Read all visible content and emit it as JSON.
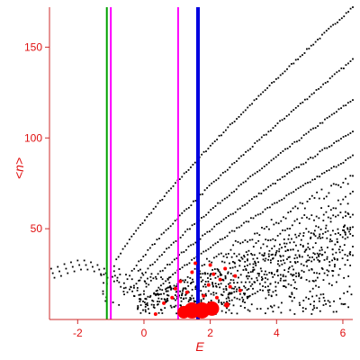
{
  "chart_data": {
    "type": "scatter",
    "xlabel": "E",
    "ylabel": "<n>",
    "xlim": [
      -2.85,
      6.3
    ],
    "ylim": [
      0,
      172
    ],
    "xticks": [
      -2,
      0,
      2,
      4,
      6
    ],
    "yticks": [
      50,
      100,
      150
    ],
    "grid": false,
    "colors": {
      "axes": "#cc2a2a",
      "labels": "#e01010",
      "dots": "#000000",
      "red_markers": "#ff0000",
      "green_line": "#00a000",
      "magenta_line": "#ff00ff",
      "blue_line": "#0000e0"
    },
    "vertical_lines": [
      {
        "x": -1.12,
        "color": "#00a000"
      },
      {
        "x": -1.0,
        "color": "#ff00ff"
      },
      {
        "x": 1.03,
        "color": "#ff00ff"
      },
      {
        "x": 1.63,
        "color": "#0000e0"
      }
    ],
    "black_curves": [
      {
        "x_start": -0.9,
        "x_end": 6.3,
        "y_start": 30,
        "y_end": 172,
        "n": 110
      },
      {
        "x_start": -0.5,
        "x_end": 6.3,
        "y_start": 22,
        "y_end": 143,
        "n": 100
      },
      {
        "x_start": -0.3,
        "x_end": 6.3,
        "y_start": 18,
        "y_end": 121,
        "n": 95
      },
      {
        "x_start": 0.0,
        "x_end": 6.3,
        "y_start": 16,
        "y_end": 104,
        "n": 90
      },
      {
        "x_start": 0.3,
        "x_end": 6.3,
        "y_start": 14,
        "y_end": 90,
        "n": 85
      },
      {
        "x_start": 0.6,
        "x_end": 6.3,
        "y_start": 12,
        "y_end": 78,
        "n": 80
      },
      {
        "x_start": 0.9,
        "x_end": 6.3,
        "y_start": 11,
        "y_end": 68,
        "n": 75
      },
      {
        "x_start": 1.2,
        "x_end": 6.3,
        "y_start": 10,
        "y_end": 60,
        "n": 70
      },
      {
        "x_start": 1.5,
        "x_end": 6.3,
        "y_start": 9,
        "y_end": 52,
        "n": 65
      },
      {
        "x_start": 1.8,
        "x_end": 6.3,
        "y_start": 8,
        "y_end": 45,
        "n": 60
      },
      {
        "x_start": 2.1,
        "x_end": 6.3,
        "y_start": 8,
        "y_end": 39,
        "n": 55
      },
      {
        "x_start": 2.5,
        "x_end": 6.3,
        "y_start": 7,
        "y_end": 33,
        "n": 50
      }
    ],
    "left_hump": [
      [
        -2.8,
        28
      ],
      [
        -2.6,
        29
      ],
      [
        -2.4,
        30.5
      ],
      [
        -2.2,
        31.5
      ],
      [
        -2.0,
        32.5
      ],
      [
        -1.8,
        32.5
      ],
      [
        -1.6,
        31.5
      ],
      [
        -1.4,
        30
      ],
      [
        -1.2,
        28
      ],
      [
        -1.0,
        26
      ],
      [
        -0.8,
        23
      ],
      [
        -0.6,
        20
      ],
      [
        -0.4,
        18
      ],
      [
        -0.2,
        16
      ],
      [
        0.0,
        14
      ],
      [
        0.2,
        13
      ]
    ],
    "red_markers": [
      {
        "x": 1.2,
        "y": 4,
        "size": 7
      },
      {
        "x": 1.45,
        "y": 5,
        "size": 9
      },
      {
        "x": 1.75,
        "y": 5,
        "size": 9
      },
      {
        "x": 2.05,
        "y": 6,
        "size": 8
      },
      {
        "x": 2.5,
        "y": 8,
        "size": 3
      },
      {
        "x": 0.35,
        "y": 3,
        "size": 2
      },
      {
        "x": 0.95,
        "y": 17,
        "size": 2
      },
      {
        "x": 1.1,
        "y": 21,
        "size": 2
      },
      {
        "x": 1.3,
        "y": 15,
        "size": 2
      },
      {
        "x": 1.55,
        "y": 31,
        "size": 2
      },
      {
        "x": 1.8,
        "y": 13,
        "size": 2
      },
      {
        "x": 1.95,
        "y": 19,
        "size": 2
      },
      {
        "x": 2.1,
        "y": 25,
        "size": 2
      },
      {
        "x": 2.2,
        "y": 12,
        "size": 2
      },
      {
        "x": 2.3,
        "y": 22,
        "size": 2
      },
      {
        "x": 2.45,
        "y": 28,
        "size": 2
      },
      {
        "x": 2.6,
        "y": 18,
        "size": 2
      },
      {
        "x": 2.75,
        "y": 24,
        "size": 2
      },
      {
        "x": 2.9,
        "y": 16,
        "size": 2
      },
      {
        "x": 1.45,
        "y": 26,
        "size": 2
      },
      {
        "x": 2.0,
        "y": 30,
        "size": 2
      },
      {
        "x": 0.6,
        "y": 9,
        "size": 2
      },
      {
        "x": 0.85,
        "y": 12,
        "size": 2
      }
    ]
  }
}
